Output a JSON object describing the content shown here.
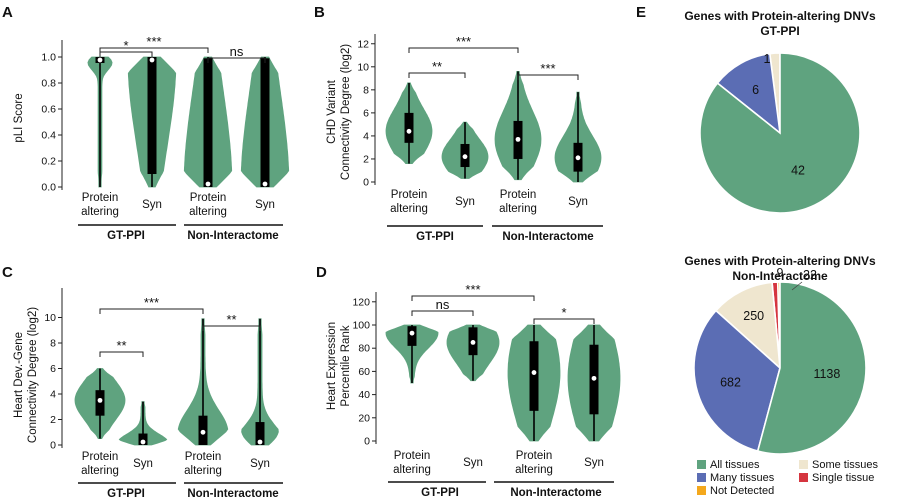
{
  "colors": {
    "all_tissues": "#5fa37f",
    "many_tissues": "#5b6db4",
    "some_tissues": "#efe6cf",
    "single_tissue": "#d5353f",
    "not_detected": "#f4a81d",
    "violin": "#5fa37f",
    "box": "#000000"
  },
  "chart_data": [
    {
      "panel": "A",
      "type": "violin",
      "ylabel": "pLI Score",
      "ylim": [
        0,
        1.1
      ],
      "yticks": [
        "0.0",
        "0.2",
        "0.4",
        "0.6",
        "0.8",
        "1.0"
      ],
      "groups": [
        {
          "label": "GT-PPI",
          "categories": [
            "Protein altering",
            "Syn"
          ]
        },
        {
          "label": "Non-Interactome",
          "categories": [
            "Protein altering",
            "Syn"
          ]
        }
      ],
      "series": [
        {
          "name": "GT-PPI Protein altering",
          "median": 0.99,
          "q1": 0.97,
          "q3": 1.0,
          "min": 0.0,
          "max": 1.0
        },
        {
          "name": "GT-PPI Syn",
          "median": 0.99,
          "q1": 0.1,
          "q3": 1.0,
          "min": 0.0,
          "max": 1.0
        },
        {
          "name": "Non-Interactome Protein altering",
          "median": 0.0,
          "q1": 0.0,
          "q3": 0.99,
          "min": 0.0,
          "max": 1.0
        },
        {
          "name": "Non-Interactome Syn",
          "median": 0.0,
          "q1": 0.0,
          "q3": 0.99,
          "min": 0.0,
          "max": 1.0
        }
      ],
      "significance": [
        {
          "from": 0,
          "to": 1,
          "label": "*"
        },
        {
          "from": 0,
          "to": 2,
          "label": "***"
        },
        {
          "from": 2,
          "to": 3,
          "label": "ns"
        }
      ]
    },
    {
      "panel": "B",
      "type": "violin",
      "ylabel": "CHD Variant Connectivity Degree (log2)",
      "ylim": [
        0,
        12.5
      ],
      "yticks": [
        "0",
        "2",
        "4",
        "6",
        "8",
        "10",
        "12"
      ],
      "groups": [
        {
          "label": "GT-PPI",
          "categories": [
            "Protein altering",
            "Syn"
          ]
        },
        {
          "label": "Non-Interactome",
          "categories": [
            "Protein altering",
            "Syn"
          ]
        }
      ],
      "series": [
        {
          "name": "GT-PPI Protein altering",
          "median": 4.4,
          "q1": 3.4,
          "q3": 6.0,
          "min": 1.6,
          "max": 8.6
        },
        {
          "name": "GT-PPI Syn",
          "median": 2.2,
          "q1": 1.3,
          "q3": 3.3,
          "min": 0.3,
          "max": 5.2
        },
        {
          "name": "Non-Interactome Protein altering",
          "median": 3.7,
          "q1": 2.0,
          "q3": 5.3,
          "min": 0.2,
          "max": 9.6
        },
        {
          "name": "Non-Interactome Syn",
          "median": 2.1,
          "q1": 0.9,
          "q3": 3.4,
          "min": 0.0,
          "max": 7.8
        }
      ],
      "significance": [
        {
          "from": 0,
          "to": 1,
          "label": "**"
        },
        {
          "from": 0,
          "to": 2,
          "label": "***"
        },
        {
          "from": 2,
          "to": 3,
          "label": "***"
        }
      ]
    },
    {
      "panel": "C",
      "type": "violin",
      "ylabel": "Heart Dev.-Gene Connectivity Degree (log2)",
      "ylim": [
        0,
        12
      ],
      "yticks": [
        "0",
        "2",
        "4",
        "6",
        "8",
        "10"
      ],
      "groups": [
        {
          "label": "GT-PPI",
          "categories": [
            "Protein altering",
            "Syn"
          ]
        },
        {
          "label": "Non-Interactome",
          "categories": [
            "Protein altering",
            "Syn"
          ]
        }
      ],
      "series": [
        {
          "name": "GT-PPI Protein altering",
          "median": 3.5,
          "q1": 2.3,
          "q3": 4.3,
          "min": 0.5,
          "max": 6.0
        },
        {
          "name": "GT-PPI Syn",
          "median": 0.2,
          "q1": 0.0,
          "q3": 0.9,
          "min": 0.0,
          "max": 3.4
        },
        {
          "name": "Non-Interactome Protein altering",
          "median": 1.0,
          "q1": 0.0,
          "q3": 2.3,
          "min": 0.0,
          "max": 9.9
        },
        {
          "name": "Non-Interactome Syn",
          "median": 0.1,
          "q1": 0.0,
          "q3": 1.8,
          "min": 0.0,
          "max": 9.9
        }
      ],
      "significance": [
        {
          "from": 0,
          "to": 1,
          "label": "**"
        },
        {
          "from": 0,
          "to": 2,
          "label": "***"
        },
        {
          "from": 2,
          "to": 3,
          "label": "**"
        }
      ]
    },
    {
      "panel": "D",
      "type": "violin",
      "ylabel": "Heart Expression Percentile Rank",
      "ylim": [
        0,
        125
      ],
      "yticks": [
        "0",
        "20",
        "40",
        "60",
        "80",
        "100",
        "120"
      ],
      "groups": [
        {
          "label": "GT-PPI",
          "categories": [
            "Protein altering",
            "Syn"
          ]
        },
        {
          "label": "Non-Interactome",
          "categories": [
            "Protein altering",
            "Syn"
          ]
        }
      ],
      "series": [
        {
          "name": "GT-PPI Protein altering",
          "median": 93,
          "q1": 82,
          "q3": 99,
          "min": 50,
          "max": 100
        },
        {
          "name": "GT-PPI Syn",
          "median": 85,
          "q1": 74,
          "q3": 98,
          "min": 52,
          "max": 100
        },
        {
          "name": "Non-Interactome Protein altering",
          "median": 59,
          "q1": 26,
          "q3": 86,
          "min": 0,
          "max": 100
        },
        {
          "name": "Non-Interactome Syn",
          "median": 54,
          "q1": 23,
          "q3": 83,
          "min": 0,
          "max": 100
        }
      ],
      "significance": [
        {
          "from": 0,
          "to": 1,
          "label": "ns"
        },
        {
          "from": 0,
          "to": 2,
          "label": "***"
        },
        {
          "from": 2,
          "to": 3,
          "label": "*"
        }
      ]
    },
    {
      "panel": "E",
      "type": "pie",
      "title": [
        "Genes with Protein-altering DNVs",
        "GT-PPI"
      ],
      "slices": [
        {
          "name": "All tissues",
          "value": 42,
          "label": "42"
        },
        {
          "name": "Many tissues",
          "value": 6,
          "label": "6"
        },
        {
          "name": "Some tissues",
          "value": 1,
          "label": "1"
        }
      ]
    },
    {
      "panel": "E",
      "type": "pie",
      "title": [
        "Genes with Protein-altering DNVs",
        "Non-Interactome"
      ],
      "slices": [
        {
          "name": "All tissues",
          "value": 1138,
          "label": "1138"
        },
        {
          "name": "Many tissues",
          "value": 682,
          "label": "682"
        },
        {
          "name": "Some tissues",
          "value": 250,
          "label": "250"
        },
        {
          "name": "Single tissue",
          "value": 22,
          "label": "22"
        },
        {
          "name": "Not Detected",
          "value": 9,
          "label": "9"
        }
      ]
    }
  ],
  "legend": [
    {
      "name": "All tissues",
      "color_key": "all_tissues"
    },
    {
      "name": "Some tissues",
      "color_key": "some_tissues"
    },
    {
      "name": "Many tissues",
      "color_key": "many_tissues"
    },
    {
      "name": "Single tissue",
      "color_key": "single_tissue"
    },
    {
      "name": "Not Detected",
      "color_key": "not_detected"
    }
  ]
}
